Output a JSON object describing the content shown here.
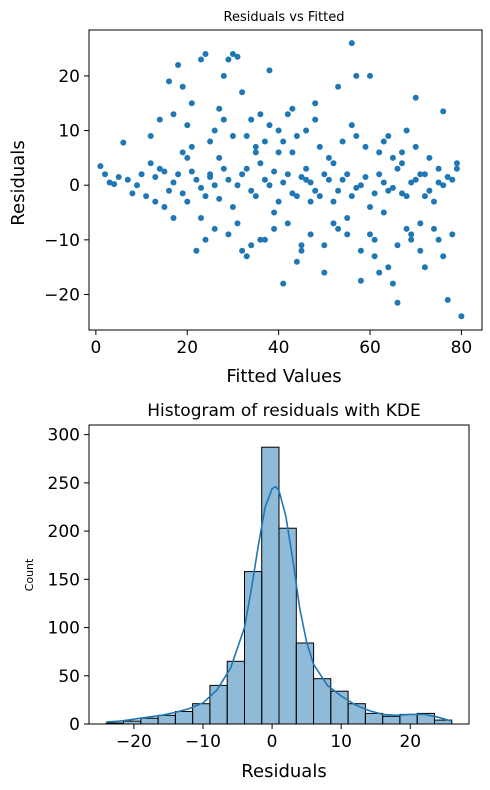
{
  "chart_data": [
    {
      "type": "scatter",
      "title": "Residuals vs Fitted",
      "xlabel": "Fitted Values",
      "ylabel": "Residuals",
      "xlim": [
        -1.5,
        84.5
      ],
      "ylim": [
        -26.5,
        28.4
      ],
      "xticks": [
        0,
        20,
        40,
        60,
        80
      ],
      "yticks": [
        -20,
        -10,
        0,
        10,
        20
      ],
      "xtick_labels": [
        "0",
        "20",
        "40",
        "60",
        "80"
      ],
      "ytick_labels": [
        "−20",
        "−10",
        "0",
        "10",
        "20"
      ],
      "marker_color": "#1f77b4",
      "grid": false,
      "points": [
        [
          1,
          3.5
        ],
        [
          3,
          0.5
        ],
        [
          5,
          1.5
        ],
        [
          6,
          7.8
        ],
        [
          8,
          -1.5
        ],
        [
          10,
          2
        ],
        [
          12,
          9
        ],
        [
          13,
          -3
        ],
        [
          14,
          12
        ],
        [
          16,
          19
        ],
        [
          17,
          13
        ],
        [
          18,
          22
        ],
        [
          19,
          18
        ],
        [
          20,
          5
        ],
        [
          21,
          15
        ],
        [
          22,
          -12
        ],
        [
          23,
          23
        ],
        [
          24,
          24
        ],
        [
          25,
          2
        ],
        [
          26,
          10
        ],
        [
          27,
          14
        ],
        [
          28,
          20
        ],
        [
          29,
          23
        ],
        [
          30,
          24
        ],
        [
          31,
          23.5
        ],
        [
          32,
          17
        ],
        [
          33,
          -13
        ],
        [
          34,
          12
        ],
        [
          35,
          6
        ],
        [
          36,
          -10
        ],
        [
          37,
          8
        ],
        [
          38,
          21
        ],
        [
          39,
          -5
        ],
        [
          40,
          10
        ],
        [
          41,
          -18
        ],
        [
          42,
          13
        ],
        [
          43,
          14
        ],
        [
          44,
          9
        ],
        [
          45,
          -12
        ],
        [
          46,
          1
        ],
        [
          47,
          -3
        ],
        [
          48,
          15
        ],
        [
          50,
          -16
        ],
        [
          52,
          4
        ],
        [
          53,
          18
        ],
        [
          55,
          -9
        ],
        [
          56,
          26
        ],
        [
          57,
          20
        ],
        [
          58,
          -17.5
        ],
        [
          60,
          20
        ],
        [
          61,
          -13
        ],
        [
          62,
          -16
        ],
        [
          63,
          8
        ],
        [
          64,
          -15
        ],
        [
          65,
          -18
        ],
        [
          66,
          -21.5
        ],
        [
          67,
          4
        ],
        [
          68,
          10
        ],
        [
          69,
          -10
        ],
        [
          70,
          16
        ],
        [
          71,
          -12
        ],
        [
          72,
          -2
        ],
        [
          74,
          -8
        ],
        [
          75,
          3
        ],
        [
          76,
          13.5
        ],
        [
          77,
          -21
        ],
        [
          79,
          4
        ],
        [
          80,
          -24
        ],
        [
          9,
          0
        ],
        [
          11,
          -2
        ],
        [
          14,
          3
        ],
        [
          16,
          -1
        ],
        [
          18,
          2
        ],
        [
          20,
          -3
        ],
        [
          22,
          1
        ],
        [
          24,
          -2
        ],
        [
          26,
          0
        ],
        [
          28,
          3
        ],
        [
          30,
          -4
        ],
        [
          32,
          2
        ],
        [
          34,
          -1
        ],
        [
          36,
          4
        ],
        [
          38,
          0
        ],
        [
          40,
          -3
        ],
        [
          42,
          2
        ],
        [
          44,
          -2
        ],
        [
          46,
          3
        ],
        [
          48,
          -1
        ],
        [
          50,
          2
        ],
        [
          52,
          -3
        ],
        [
          54,
          1
        ],
        [
          56,
          -2
        ],
        [
          58,
          0
        ],
        [
          60,
          -4
        ],
        [
          62,
          2
        ],
        [
          64,
          -1
        ],
        [
          66,
          3
        ],
        [
          68,
          -2
        ],
        [
          70,
          1
        ],
        [
          72,
          2
        ],
        [
          74,
          -3
        ],
        [
          76,
          0
        ],
        [
          78,
          1
        ],
        [
          15,
          -4
        ],
        [
          19,
          6
        ],
        [
          23,
          -6
        ],
        [
          27,
          5
        ],
        [
          31,
          -7
        ],
        [
          35,
          7
        ],
        [
          39,
          -8
        ],
        [
          43,
          6
        ],
        [
          47,
          -9
        ],
        [
          51,
          5
        ],
        [
          55,
          -6
        ],
        [
          59,
          7
        ],
        [
          63,
          -5
        ],
        [
          67,
          6
        ],
        [
          71,
          -7
        ],
        [
          25,
          8
        ],
        [
          29,
          -9
        ],
        [
          33,
          9
        ],
        [
          37,
          -10
        ],
        [
          41,
          8
        ],
        [
          45,
          -11
        ],
        [
          49,
          7
        ],
        [
          53,
          -8
        ],
        [
          57,
          9
        ],
        [
          61,
          -10
        ],
        [
          65,
          5
        ],
        [
          69,
          -9
        ],
        [
          73,
          5
        ],
        [
          12,
          4
        ],
        [
          17,
          -6
        ],
        [
          21,
          7
        ],
        [
          26,
          -8
        ],
        [
          30,
          9
        ],
        [
          34,
          -11
        ],
        [
          38,
          11
        ],
        [
          42,
          -7
        ],
        [
          46,
          10
        ],
        [
          50,
          -11
        ],
        [
          54,
          8
        ],
        [
          58,
          -12
        ],
        [
          62,
          6
        ],
        [
          66,
          -11
        ],
        [
          70,
          7
        ],
        [
          75,
          -10
        ],
        [
          79,
          3
        ],
        [
          7,
          1
        ],
        [
          4,
          0.2
        ],
        [
          2,
          2
        ],
        [
          13,
          1.5
        ],
        [
          15,
          2.5
        ],
        [
          17,
          0.5
        ],
        [
          19,
          -1.5
        ],
        [
          21,
          2.5
        ],
        [
          23,
          -0.5
        ],
        [
          25,
          1.5
        ],
        [
          27,
          -2.5
        ],
        [
          29,
          1
        ],
        [
          31,
          0
        ],
        [
          33,
          3
        ],
        [
          35,
          -2
        ],
        [
          37,
          1
        ],
        [
          39,
          2.5
        ],
        [
          41,
          0.5
        ],
        [
          43,
          -1.5
        ],
        [
          45,
          1.5
        ],
        [
          47,
          0.5
        ],
        [
          49,
          -2
        ],
        [
          51,
          1
        ],
        [
          53,
          -1
        ],
        [
          55,
          2
        ],
        [
          57,
          -0.5
        ],
        [
          59,
          1.5
        ],
        [
          61,
          -1.5
        ],
        [
          63,
          0.5
        ],
        [
          65,
          -0.5
        ],
        [
          67,
          -1.5
        ],
        [
          69,
          0.5
        ],
        [
          71,
          2
        ],
        [
          73,
          -1
        ],
        [
          75,
          0.5
        ],
        [
          77,
          1.5
        ],
        [
          20,
          11
        ],
        [
          24,
          -10
        ],
        [
          28,
          12
        ],
        [
          32,
          -12
        ],
        [
          36,
          13
        ],
        [
          40,
          6
        ],
        [
          44,
          -14
        ],
        [
          48,
          12
        ],
        [
          52,
          -7
        ],
        [
          56,
          11
        ],
        [
          60,
          -9
        ],
        [
          64,
          9
        ],
        [
          68,
          -8
        ],
        [
          72,
          -15
        ],
        [
          76,
          -13
        ],
        [
          78,
          -9
        ]
      ]
    },
    {
      "type": "bar",
      "subtype": "histogram_with_kde",
      "title": "Histogram of residuals with KDE",
      "xlabel": "Residuals",
      "ylabel": "Count",
      "xlim": [
        -26.5,
        28.5
      ],
      "ylim": [
        0,
        310
      ],
      "xticks": [
        -20,
        -10,
        0,
        10,
        20
      ],
      "yticks": [
        0,
        50,
        100,
        150,
        200,
        250,
        300
      ],
      "xtick_labels": [
        "−20",
        "−10",
        "0",
        "10",
        "20"
      ],
      "ytick_labels": [
        "0",
        "50",
        "100",
        "150",
        "200",
        "250",
        "300"
      ],
      "bar_color": "#1f77b4",
      "grid": false,
      "bin_edges": [
        -24,
        -21.5,
        -19,
        -16.5,
        -14,
        -11.5,
        -9,
        -6.5,
        -4,
        -1.5,
        1,
        3.5,
        6,
        8.5,
        11,
        13.5,
        16,
        18.5,
        21,
        23.5,
        26
      ],
      "counts": [
        1,
        3,
        6,
        9,
        13,
        21,
        40,
        65,
        158,
        287,
        203,
        84,
        47,
        34,
        21,
        11,
        8,
        10,
        11,
        4
      ],
      "kde": {
        "x": [
          -24,
          -22,
          -20,
          -18,
          -16,
          -14,
          -12,
          -10,
          -8,
          -6,
          -4,
          -3,
          -2,
          -1,
          0,
          0.5,
          1,
          2,
          3,
          4,
          5,
          6,
          8,
          10,
          12,
          14,
          16,
          18,
          20,
          22,
          24,
          26
        ],
        "y": [
          2,
          3,
          5,
          7,
          9,
          12,
          16,
          22,
          35,
          58,
          100,
          140,
          185,
          225,
          244,
          246,
          242,
          215,
          170,
          120,
          85,
          62,
          40,
          29,
          20,
          14,
          10,
          9,
          10,
          10,
          7,
          3
        ]
      }
    }
  ]
}
